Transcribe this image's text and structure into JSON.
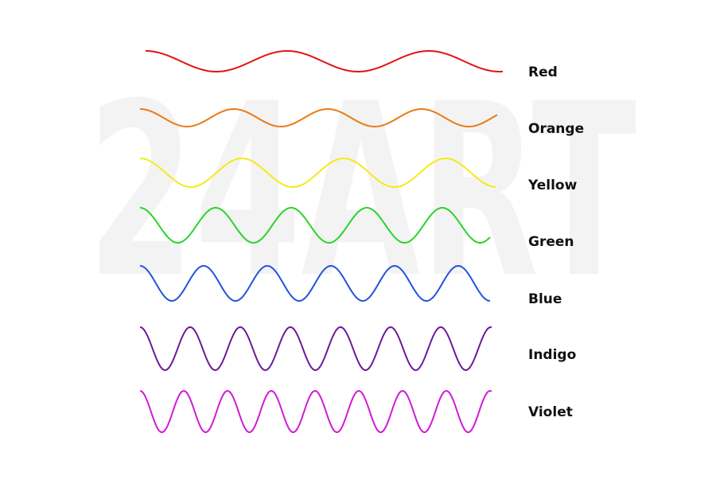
{
  "watermark": "24ART",
  "waves": [
    {
      "label": "Red",
      "color": "#e01414"
    },
    {
      "label": "Orange",
      "color": "#ec7a14"
    },
    {
      "label": "Yellow",
      "color": "#f2ec14"
    },
    {
      "label": "Green",
      "color": "#2ad42a"
    },
    {
      "label": "Blue",
      "color": "#2452de"
    },
    {
      "label": "Indigo",
      "color": "#6a1a9a"
    },
    {
      "label": "Violet",
      "color": "#d01ad6"
    }
  ]
}
